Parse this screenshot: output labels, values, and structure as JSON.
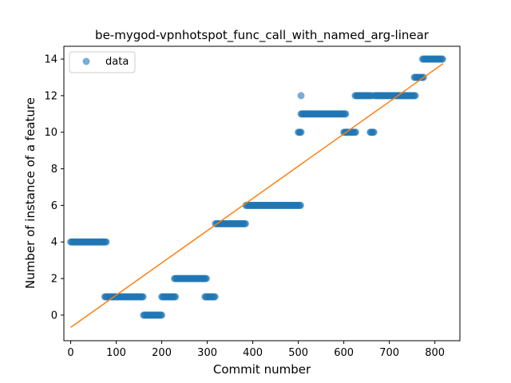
{
  "chart_data": {
    "type": "scatter",
    "title": "be-mygod-vpnhotspot_func_call_with_named_arg-linear",
    "xlabel": "Commit number",
    "ylabel": "Number of instance of a feature",
    "xlim": [
      -15,
      855
    ],
    "ylim": [
      -1.4,
      14.7
    ],
    "xticks": [
      0,
      100,
      200,
      300,
      400,
      500,
      600,
      700,
      800
    ],
    "yticks": [
      0,
      2,
      4,
      6,
      8,
      10,
      12,
      14
    ],
    "grid": false,
    "legend": {
      "position": "top-left",
      "entries": [
        "data"
      ]
    },
    "colors": {
      "data": "#1f77b4",
      "fit": "#ff7f0e"
    },
    "series": [
      {
        "name": "data",
        "kind": "scatter",
        "segments": [
          {
            "x_from": 0,
            "x_to": 78,
            "y": 4
          },
          {
            "x_from": 75,
            "x_to": 160,
            "y": 1
          },
          {
            "x_from": 160,
            "x_to": 200,
            "y": 0
          },
          {
            "x_from": 200,
            "x_to": 230,
            "y": 1
          },
          {
            "x_from": 228,
            "x_to": 298,
            "y": 2
          },
          {
            "x_from": 295,
            "x_to": 318,
            "y": 1
          },
          {
            "x_from": 318,
            "x_to": 385,
            "y": 5
          },
          {
            "x_from": 385,
            "x_to": 505,
            "y": 6
          },
          {
            "x_from": 500,
            "x_to": 506,
            "y": 10
          },
          {
            "x_from": 506,
            "x_to": 605,
            "y": 11
          },
          {
            "x_from": 600,
            "x_to": 627,
            "y": 10
          },
          {
            "x_from": 625,
            "x_to": 662,
            "y": 12
          },
          {
            "x_from": 658,
            "x_to": 667,
            "y": 10
          },
          {
            "x_from": 667,
            "x_to": 758,
            "y": 12
          },
          {
            "x_from": 755,
            "x_to": 775,
            "y": 13
          },
          {
            "x_from": 773,
            "x_to": 818,
            "y": 14
          }
        ],
        "outliers": [
          {
            "x": 506,
            "y": 12
          }
        ]
      },
      {
        "kind": "line",
        "x": [
          0,
          818
        ],
        "y": [
          -0.67,
          13.75
        ]
      }
    ]
  }
}
